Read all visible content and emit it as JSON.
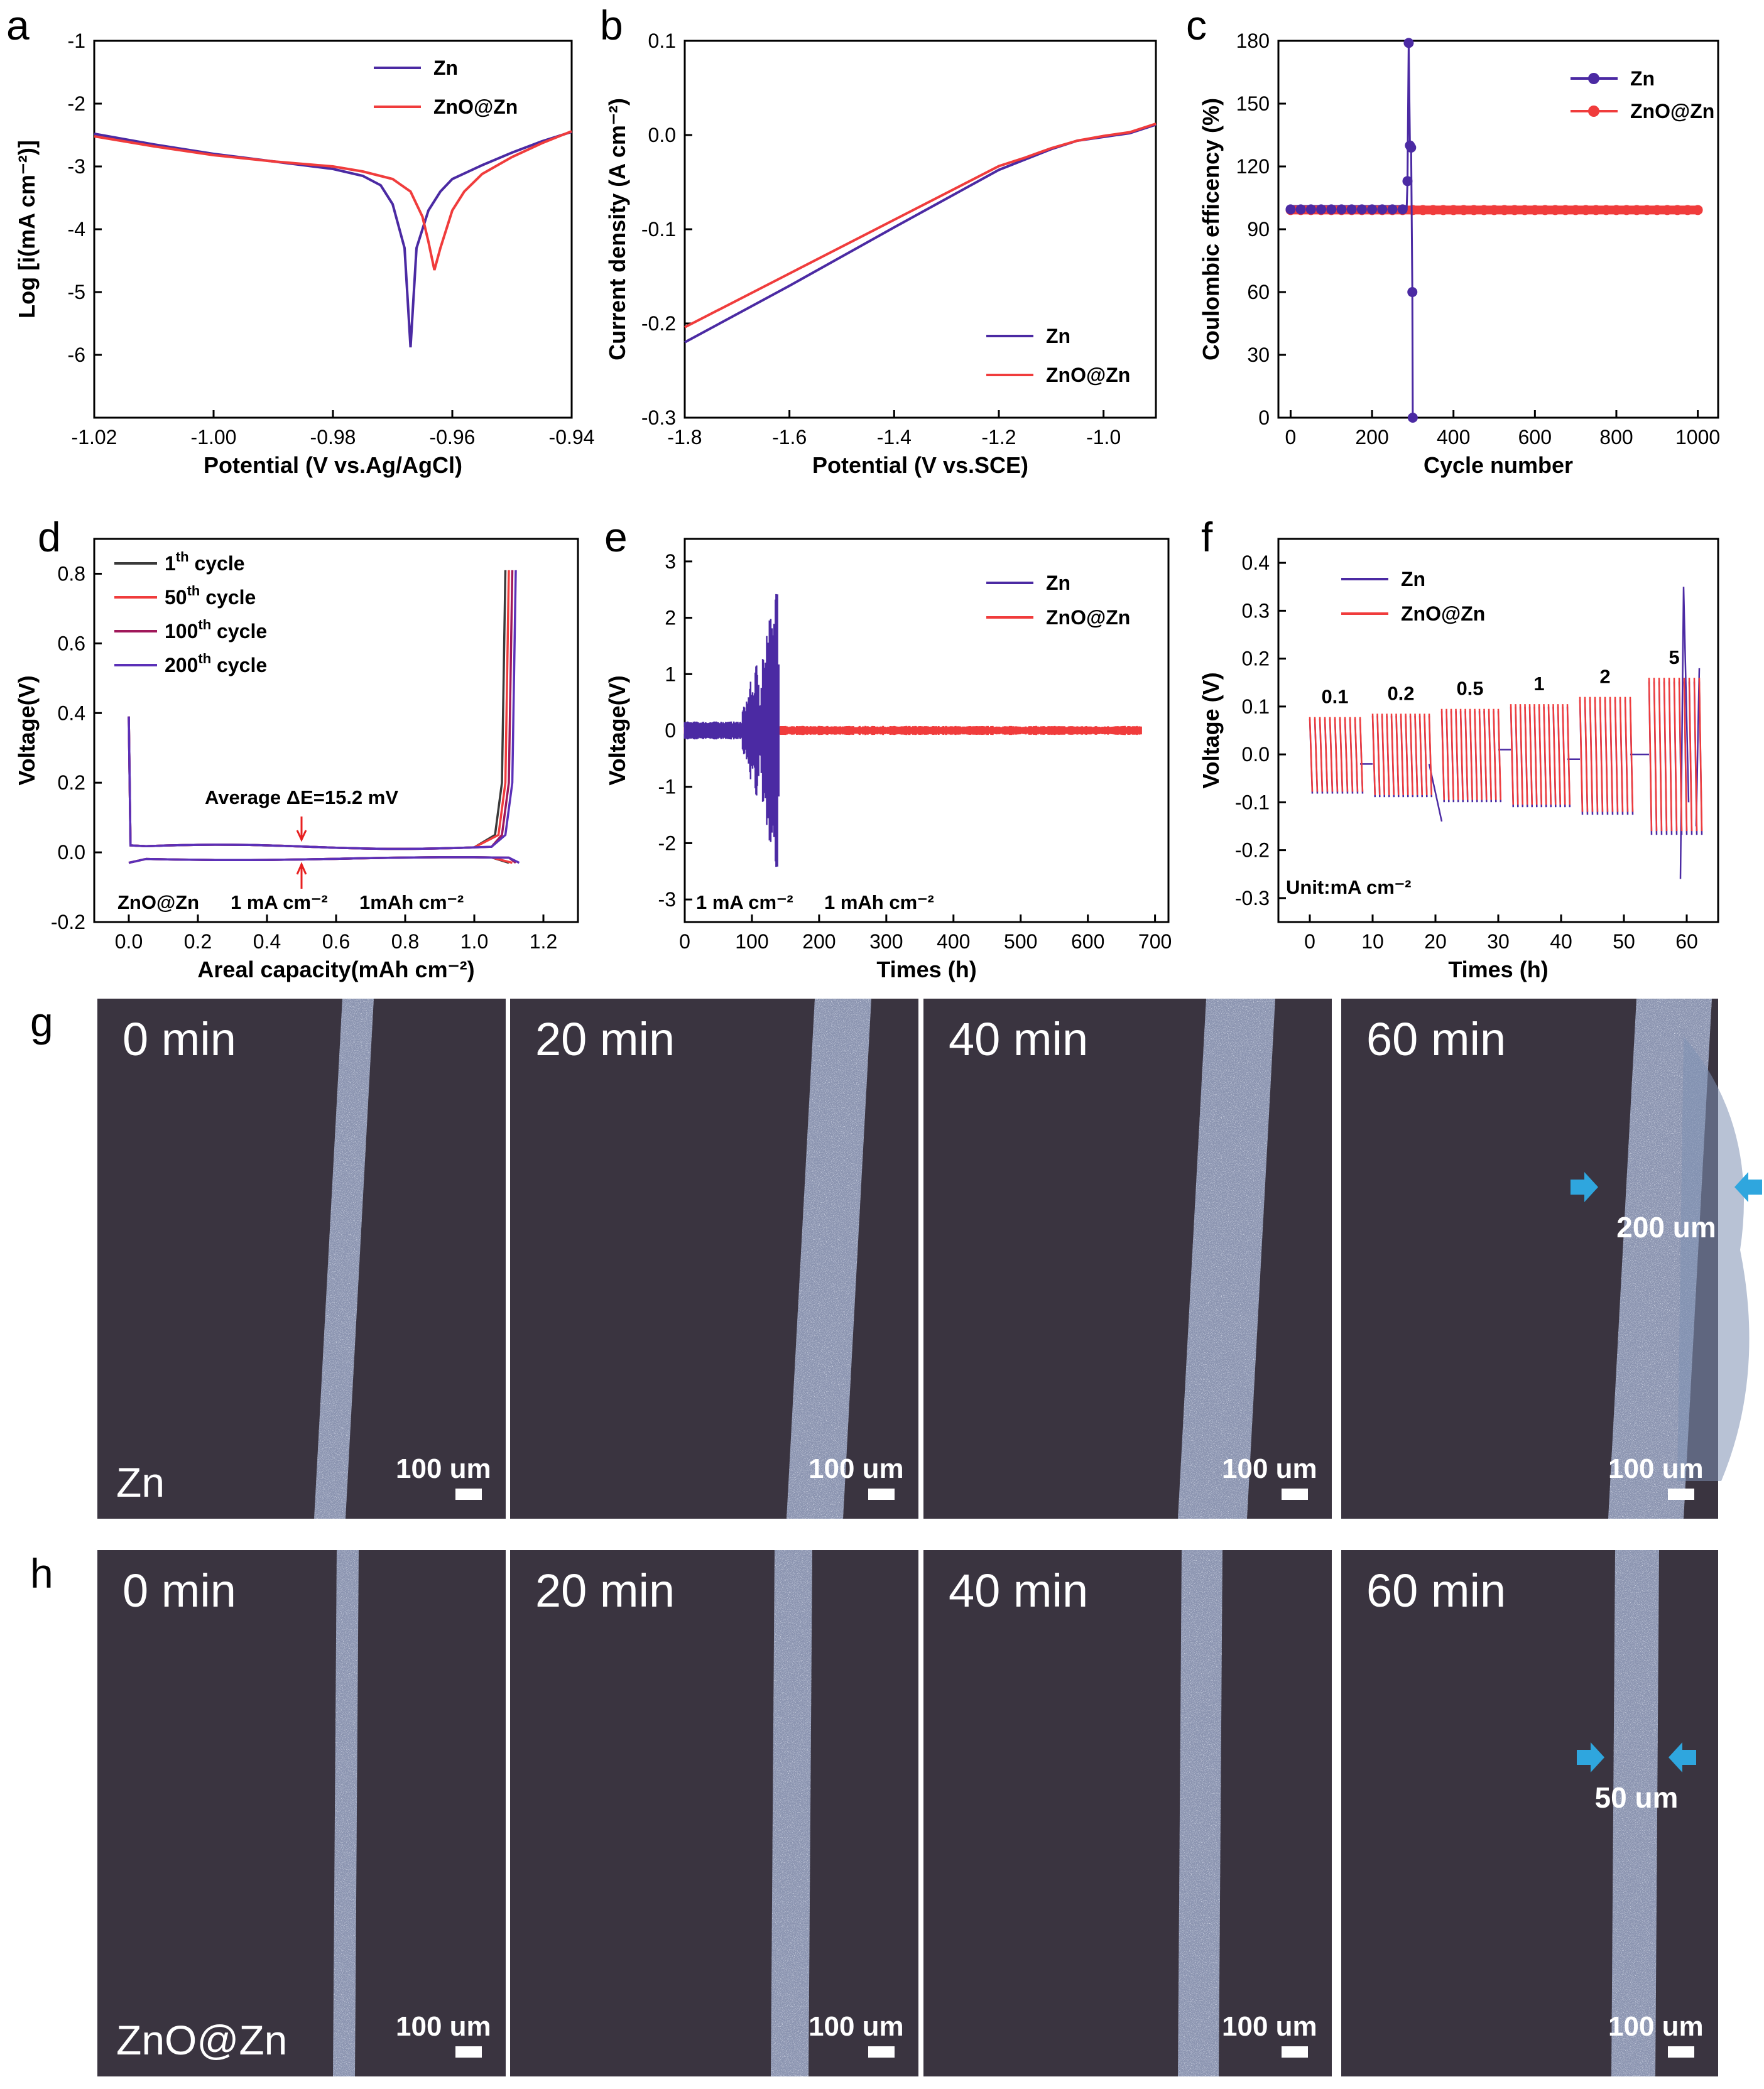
{
  "colors": {
    "zn": "#4b2aa3",
    "zno": "#f03c3c",
    "cycle1": "#3a3a3a",
    "cycle50": "#f03c3c",
    "cycle100": "#a0185a",
    "cycle200": "#5b30b8",
    "arrow": "#e82020",
    "photoBg": "#3a3440",
    "blueArrow": "#2fa6de"
  },
  "chart_data": [
    {
      "id": "a",
      "type": "line",
      "letter": "a",
      "xlabel": "Potential (V vs.Ag/AgCl)",
      "ylabel": "Log [i(mA cm⁻²)]",
      "xlim": [
        -1.02,
        -0.94
      ],
      "ylim": [
        -7,
        -1
      ],
      "xticks": [
        -1.02,
        -1.0,
        -0.98,
        -0.96,
        -0.94
      ],
      "xtick_labels": [
        "-1.02",
        "-1.00",
        "-0.98",
        "-0.96",
        "-0.94"
      ],
      "yticks": [
        -6,
        -5,
        -4,
        -3,
        -2,
        -1
      ],
      "ytick_labels": [
        "-6",
        "-5",
        "-4",
        "-3",
        "-2",
        "-1"
      ],
      "legend": "top-right",
      "series": [
        {
          "name": "Zn",
          "color": "#4b2aa3",
          "x": [
            -1.02,
            -1.01,
            -1.0,
            -0.99,
            -0.98,
            -0.975,
            -0.972,
            -0.97,
            -0.968,
            -0.967,
            -0.966,
            -0.964,
            -0.962,
            -0.96,
            -0.955,
            -0.95,
            -0.945,
            -0.94
          ],
          "y": [
            -2.48,
            -2.65,
            -2.8,
            -2.92,
            -3.04,
            -3.15,
            -3.3,
            -3.6,
            -4.3,
            -5.88,
            -4.3,
            -3.7,
            -3.4,
            -3.2,
            -2.98,
            -2.78,
            -2.6,
            -2.45
          ]
        },
        {
          "name": "ZnO@Zn",
          "color": "#f03c3c",
          "x": [
            -1.02,
            -1.01,
            -1.0,
            -0.99,
            -0.98,
            -0.975,
            -0.97,
            -0.967,
            -0.965,
            -0.964,
            -0.963,
            -0.962,
            -0.96,
            -0.958,
            -0.955,
            -0.95,
            -0.945,
            -0.94
          ],
          "y": [
            -2.52,
            -2.68,
            -2.82,
            -2.92,
            -3.0,
            -3.08,
            -3.2,
            -3.4,
            -3.8,
            -4.2,
            -4.65,
            -4.3,
            -3.7,
            -3.4,
            -3.12,
            -2.85,
            -2.63,
            -2.44
          ]
        }
      ]
    },
    {
      "id": "b",
      "type": "line",
      "letter": "b",
      "xlabel": "Potential (V vs.SCE)",
      "ylabel": "Current density (A cm⁻²)",
      "xlim": [
        -1.8,
        -0.9
      ],
      "ylim": [
        -0.3,
        0.1
      ],
      "xticks": [
        -1.8,
        -1.6,
        -1.4,
        -1.2,
        -1.0
      ],
      "xtick_labels": [
        "-1.8",
        "-1.6",
        "-1.4",
        "-1.2",
        "-1.0"
      ],
      "yticks": [
        -0.3,
        -0.2,
        -0.1,
        0.0,
        0.1
      ],
      "ytick_labels": [
        "-0.3",
        "-0.2",
        "-0.1",
        "0.0",
        "0.1"
      ],
      "legend": "bottom-right",
      "series": [
        {
          "name": "Zn",
          "color": "#4b2aa3",
          "x": [
            -1.8,
            -1.6,
            -1.4,
            -1.2,
            -1.1,
            -1.05,
            -1.0,
            -0.95,
            -0.9
          ],
          "y": [
            -0.22,
            -0.16,
            -0.098,
            -0.037,
            -0.015,
            -0.006,
            -0.002,
            0.002,
            0.011
          ]
        },
        {
          "name": "ZnO@Zn",
          "color": "#f03c3c",
          "x": [
            -1.8,
            -1.6,
            -1.4,
            -1.2,
            -1.15,
            -1.1,
            -1.05,
            -1.0,
            -0.95,
            -0.9
          ],
          "y": [
            -0.204,
            -0.147,
            -0.09,
            -0.033,
            -0.024,
            -0.014,
            -0.006,
            -0.001,
            0.003,
            0.012
          ]
        }
      ]
    },
    {
      "id": "c",
      "type": "scatter",
      "letter": "c",
      "xlabel": "Cycle number",
      "ylabel": "Coulombic efficency (%)",
      "xlim": [
        -30,
        1050
      ],
      "ylim": [
        0,
        180
      ],
      "xticks": [
        0,
        200,
        400,
        600,
        800,
        1000
      ],
      "xtick_labels": [
        "0",
        "200",
        "400",
        "600",
        "800",
        "1000"
      ],
      "yticks": [
        0,
        30,
        60,
        90,
        120,
        150,
        180
      ],
      "ytick_labels": [
        "0",
        "30",
        "60",
        "90",
        "120",
        "150",
        "180"
      ],
      "legend": "top-right",
      "series": [
        {
          "name": "Zn",
          "color": "#4b2aa3",
          "x_start": 0,
          "x_end": 285,
          "y_const": 99.5,
          "spikes_x": [
            287,
            290,
            293,
            296,
            299,
            300
          ],
          "spikes_y": [
            113,
            179,
            130,
            129,
            60,
            0
          ]
        },
        {
          "name": "ZnO@Zn",
          "color": "#f03c3c",
          "x_start": 0,
          "x_end": 1000,
          "y_const": 99.2
        }
      ]
    },
    {
      "id": "d",
      "type": "line",
      "letter": "d",
      "xlabel": "Areal capacity(mAh cm⁻²)",
      "ylabel": "Voltage(V)",
      "xlim": [
        -0.1,
        1.3
      ],
      "ylim": [
        -0.2,
        0.9
      ],
      "xticks": [
        0.0,
        0.2,
        0.4,
        0.6,
        0.8,
        1.0,
        1.2
      ],
      "xtick_labels": [
        "0.0",
        "0.2",
        "0.4",
        "0.6",
        "0.8",
        "1.0",
        "1.2"
      ],
      "yticks": [
        -0.2,
        0.0,
        0.2,
        0.4,
        0.6,
        0.8
      ],
      "ytick_labels": [
        "-0.2",
        "0.0",
        "0.2",
        "0.4",
        "0.6",
        "0.8"
      ],
      "legend": "top-left",
      "legend_entries": [
        {
          "pre": "1",
          "sup": "th",
          "post": " cycle",
          "color": "#3a3a3a"
        },
        {
          "pre": "50",
          "sup": "th",
          "post": " cycle",
          "color": "#f03c3c"
        },
        {
          "pre": "100",
          "sup": "th",
          "post": " cycle",
          "color": "#a0185a"
        },
        {
          "pre": "200",
          "sup": "th",
          "post": " cycle",
          "color": "#5b30b8"
        }
      ],
      "annotations": {
        "delta": "Average ΔE=15.2 mV",
        "sample": "ZnO@Zn",
        "current": "1 mA cm⁻²",
        "capacity": "1mAh cm⁻²"
      }
    },
    {
      "id": "e",
      "type": "line",
      "letter": "e",
      "xlabel": "Times (h)",
      "ylabel": "Voltage(V)",
      "xlim": [
        0,
        720
      ],
      "ylim": [
        -3.4,
        3.4
      ],
      "xticks": [
        0,
        100,
        200,
        300,
        400,
        500,
        600,
        700
      ],
      "xtick_labels": [
        "0",
        "100",
        "200",
        "300",
        "400",
        "500",
        "600",
        "700"
      ],
      "yticks": [
        -3,
        -2,
        -1,
        0,
        1,
        2,
        3
      ],
      "ytick_labels": [
        "-3",
        "-2",
        "-1",
        "0",
        "1",
        "2",
        "3"
      ],
      "legend": "top-right",
      "series": [
        {
          "name": "Zn",
          "color": "#4b2aa3",
          "x_end": 140,
          "spike_amp": 2.4
        },
        {
          "name": "ZnO@Zn",
          "color": "#f03c3c",
          "x_end": 680,
          "amp": 0.08
        }
      ],
      "annotations": {
        "current": "1 mA cm⁻²",
        "capacity": "1 mAh cm⁻²"
      }
    },
    {
      "id": "f",
      "type": "line",
      "letter": "f",
      "xlabel": "Times (h)",
      "ylabel": "Voltage (V)",
      "xlim": [
        -5,
        65
      ],
      "ylim": [
        -0.35,
        0.45
      ],
      "xticks": [
        0,
        10,
        20,
        30,
        40,
        50,
        60
      ],
      "xtick_labels": [
        "0",
        "10",
        "20",
        "30",
        "40",
        "50",
        "60"
      ],
      "yticks": [
        -0.3,
        -0.2,
        -0.1,
        0.0,
        0.1,
        0.2,
        0.3,
        0.4
      ],
      "ytick_labels": [
        "-0.3",
        "-0.2",
        "-0.1",
        "0.0",
        "0.1",
        "0.2",
        "0.3",
        "0.4"
      ],
      "legend": "top-left",
      "series": [
        {
          "name": "Zn",
          "color": "#4b2aa3"
        },
        {
          "name": "ZnO@Zn",
          "color": "#f03c3c"
        }
      ],
      "rates": [
        {
          "label": "0.1",
          "start": 0,
          "end": 8,
          "amp": 0.078
        },
        {
          "label": "0.2",
          "start": 10,
          "end": 19,
          "amp": 0.085
        },
        {
          "label": "0.5",
          "start": 21,
          "end": 30,
          "amp": 0.095
        },
        {
          "label": "1",
          "start": 32,
          "end": 41,
          "amp": 0.105
        },
        {
          "label": "2",
          "start": 43,
          "end": 51,
          "amp": 0.12
        },
        {
          "label": "5",
          "start": 54,
          "end": 62,
          "amp": 0.16
        }
      ],
      "unit": "Unit:mA cm⁻²"
    }
  ],
  "photos": {
    "g": {
      "letter": "g",
      "sample": "Zn",
      "times": [
        "0 min",
        "20 min",
        "40 min",
        "60 min"
      ],
      "scale": "100 um",
      "width_label": "200 um"
    },
    "h": {
      "letter": "h",
      "sample": "ZnO@Zn",
      "times": [
        "0 min",
        "20 min",
        "40 min",
        "60 min"
      ],
      "scale": "100 um",
      "width_label": "50 um"
    }
  }
}
